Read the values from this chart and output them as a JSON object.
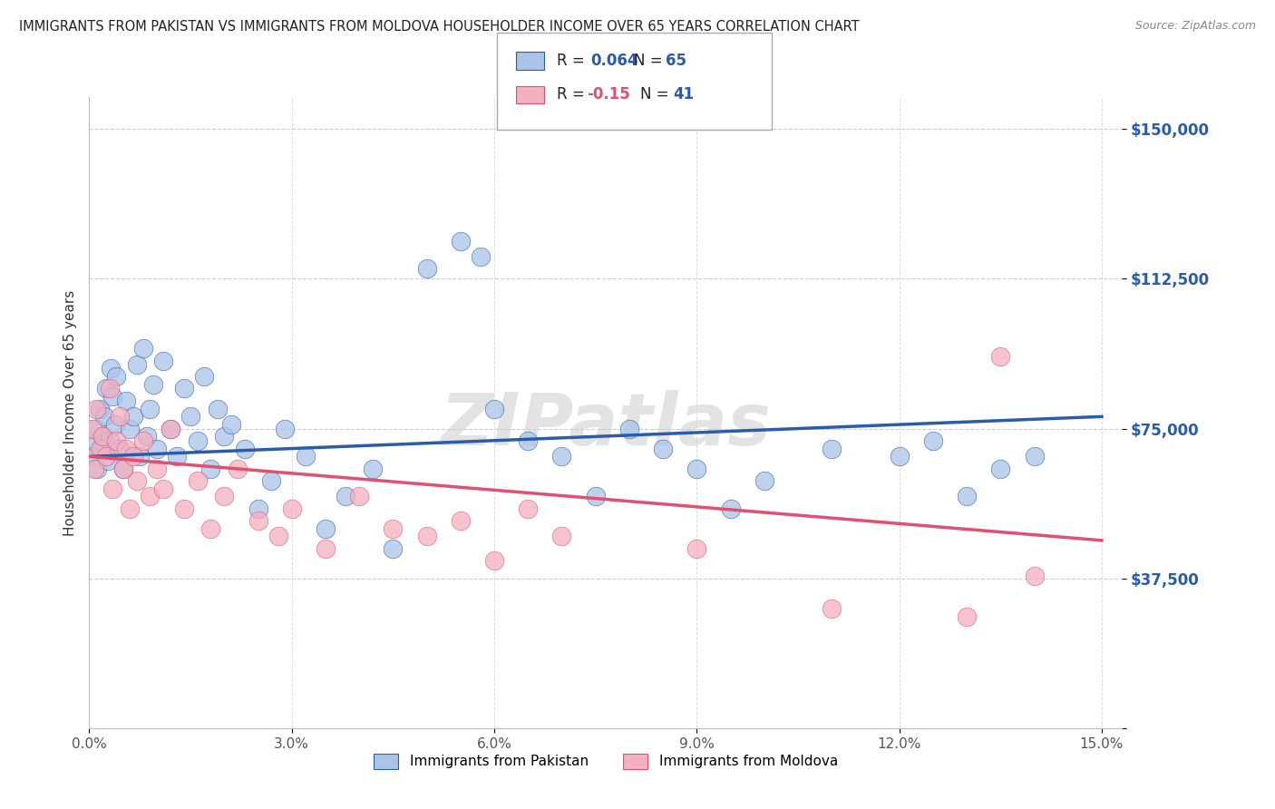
{
  "title": "IMMIGRANTS FROM PAKISTAN VS IMMIGRANTS FROM MOLDOVA HOUSEHOLDER INCOME OVER 65 YEARS CORRELATION CHART",
  "source": "Source: ZipAtlas.com",
  "ylabel": "Householder Income Over 65 years",
  "xlabel_ticks": [
    "0.0%",
    "3.0%",
    "6.0%",
    "9.0%",
    "12.0%",
    "15.0%"
  ],
  "xlabel_vals": [
    0.0,
    3.0,
    6.0,
    9.0,
    12.0,
    15.0
  ],
  "ylabel_labels": [
    "",
    "$37,500",
    "$75,000",
    "$112,500",
    "$150,000"
  ],
  "ylabel_vals": [
    0,
    37500,
    75000,
    112500,
    150000
  ],
  "xlim": [
    0,
    15.3
  ],
  "ylim": [
    0,
    158000
  ],
  "pakistan_R": 0.064,
  "pakistan_N": 65,
  "moldova_R": -0.15,
  "moldova_N": 41,
  "pakistan_color": "#aac4e8",
  "moldova_color": "#f4afc0",
  "pakistan_line_color": "#2a5caa",
  "moldova_line_color": "#e05070",
  "watermark": "ZIPatlas",
  "pak_line_x0": 0,
  "pak_line_y0": 68000,
  "pak_line_x1": 15,
  "pak_line_y1": 78000,
  "mol_line_x0": 0,
  "mol_line_y0": 68000,
  "mol_line_x1": 15,
  "mol_line_y1": 47000,
  "pak_x": [
    0.05,
    0.08,
    0.1,
    0.12,
    0.15,
    0.18,
    0.2,
    0.22,
    0.25,
    0.28,
    0.3,
    0.32,
    0.35,
    0.38,
    0.4,
    0.45,
    0.5,
    0.55,
    0.6,
    0.65,
    0.7,
    0.75,
    0.8,
    0.85,
    0.9,
    0.95,
    1.0,
    1.1,
    1.2,
    1.3,
    1.4,
    1.5,
    1.6,
    1.7,
    1.8,
    1.9,
    2.0,
    2.1,
    2.3,
    2.5,
    2.7,
    2.9,
    3.2,
    3.5,
    3.8,
    4.2,
    4.5,
    5.0,
    5.5,
    5.8,
    6.0,
    6.5,
    7.0,
    7.5,
    8.0,
    8.5,
    9.0,
    9.5,
    10.0,
    11.0,
    12.0,
    12.5,
    13.0,
    13.5,
    14.0
  ],
  "pak_y": [
    72000,
    68000,
    75000,
    65000,
    80000,
    70000,
    73000,
    78000,
    85000,
    67000,
    72000,
    90000,
    83000,
    76000,
    88000,
    70000,
    65000,
    82000,
    75000,
    78000,
    91000,
    68000,
    95000,
    73000,
    80000,
    86000,
    70000,
    92000,
    75000,
    68000,
    85000,
    78000,
    72000,
    88000,
    65000,
    80000,
    73000,
    76000,
    70000,
    55000,
    62000,
    75000,
    68000,
    50000,
    58000,
    65000,
    45000,
    115000,
    122000,
    118000,
    80000,
    72000,
    68000,
    58000,
    75000,
    70000,
    65000,
    55000,
    62000,
    70000,
    68000,
    72000,
    58000,
    65000,
    68000
  ],
  "mol_x": [
    0.05,
    0.08,
    0.1,
    0.15,
    0.2,
    0.25,
    0.3,
    0.35,
    0.4,
    0.45,
    0.5,
    0.55,
    0.6,
    0.65,
    0.7,
    0.8,
    0.9,
    1.0,
    1.1,
    1.2,
    1.4,
    1.6,
    1.8,
    2.0,
    2.2,
    2.5,
    2.8,
    3.0,
    3.5,
    4.0,
    4.5,
    5.0,
    5.5,
    6.0,
    6.5,
    7.0,
    9.0,
    11.0,
    13.0,
    13.5,
    14.0
  ],
  "mol_y": [
    75000,
    65000,
    80000,
    70000,
    73000,
    68000,
    85000,
    60000,
    72000,
    78000,
    65000,
    70000,
    55000,
    68000,
    62000,
    72000,
    58000,
    65000,
    60000,
    75000,
    55000,
    62000,
    50000,
    58000,
    65000,
    52000,
    48000,
    55000,
    45000,
    58000,
    50000,
    48000,
    52000,
    42000,
    55000,
    48000,
    45000,
    30000,
    28000,
    93000,
    38000
  ]
}
